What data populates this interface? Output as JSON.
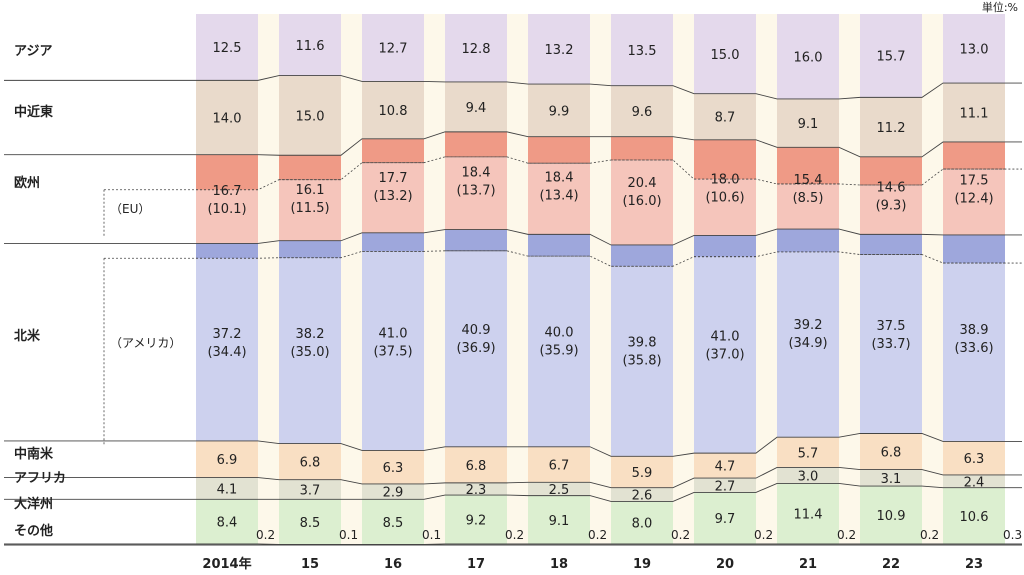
{
  "unit_label": "単位:%",
  "chart_data": {
    "type": "bar",
    "stacked": true,
    "normalized_to_100": true,
    "categories": [
      "2014年",
      "15",
      "16",
      "17",
      "18",
      "19",
      "20",
      "21",
      "22",
      "23"
    ],
    "series": [
      {
        "name": "アジア",
        "values": [
          12.5,
          11.6,
          12.7,
          12.8,
          13.2,
          13.5,
          15.0,
          16.0,
          15.7,
          13.0
        ],
        "color": "#e4d9ec"
      },
      {
        "name": "中近東",
        "values": [
          14.0,
          15.0,
          10.8,
          9.4,
          9.9,
          9.6,
          8.7,
          9.1,
          11.2,
          11.1
        ],
        "color": "#e9dacb"
      },
      {
        "name": "欧州",
        "values": [
          16.7,
          16.1,
          17.7,
          18.4,
          18.4,
          20.4,
          18.0,
          15.4,
          14.6,
          17.5
        ],
        "color": "#f5c5bb",
        "accent_color": "#ef9a86",
        "sub": {
          "name": "（EU）",
          "values": [
            10.1,
            11.5,
            13.2,
            13.7,
            13.4,
            16.0,
            10.6,
            8.5,
            9.3,
            12.4
          ]
        }
      },
      {
        "name": "北米",
        "values": [
          37.2,
          38.2,
          41.0,
          40.9,
          40.0,
          39.8,
          41.0,
          39.2,
          37.5,
          38.9
        ],
        "color": "#cdd1ee",
        "accent_color": "#9ea7dc",
        "sub": {
          "name": "（アメリカ）",
          "values": [
            34.4,
            35.0,
            37.5,
            36.9,
            35.9,
            35.8,
            37.0,
            34.9,
            33.7,
            33.6
          ]
        }
      },
      {
        "name": "中南米",
        "values": [
          6.9,
          6.8,
          6.3,
          6.8,
          6.7,
          5.9,
          4.7,
          5.7,
          6.8,
          6.3
        ],
        "color": "#f9dfc3"
      },
      {
        "name": "アフリカ",
        "values": [
          4.1,
          3.7,
          2.9,
          2.3,
          2.5,
          2.6,
          2.7,
          3.0,
          3.1,
          2.4
        ],
        "color": "#e2e2d2"
      },
      {
        "name": "大洋州",
        "values": [
          8.4,
          8.5,
          8.5,
          9.2,
          9.1,
          8.0,
          9.7,
          11.4,
          10.9,
          10.6
        ],
        "color": "#dcefd0"
      },
      {
        "name": "その他",
        "values": [
          0.2,
          0.1,
          0.1,
          0.2,
          0.2,
          0.2,
          0.2,
          0.2,
          0.2,
          0.3
        ],
        "color": "#f3f3f3"
      }
    ],
    "ylim": [
      0,
      100
    ]
  }
}
